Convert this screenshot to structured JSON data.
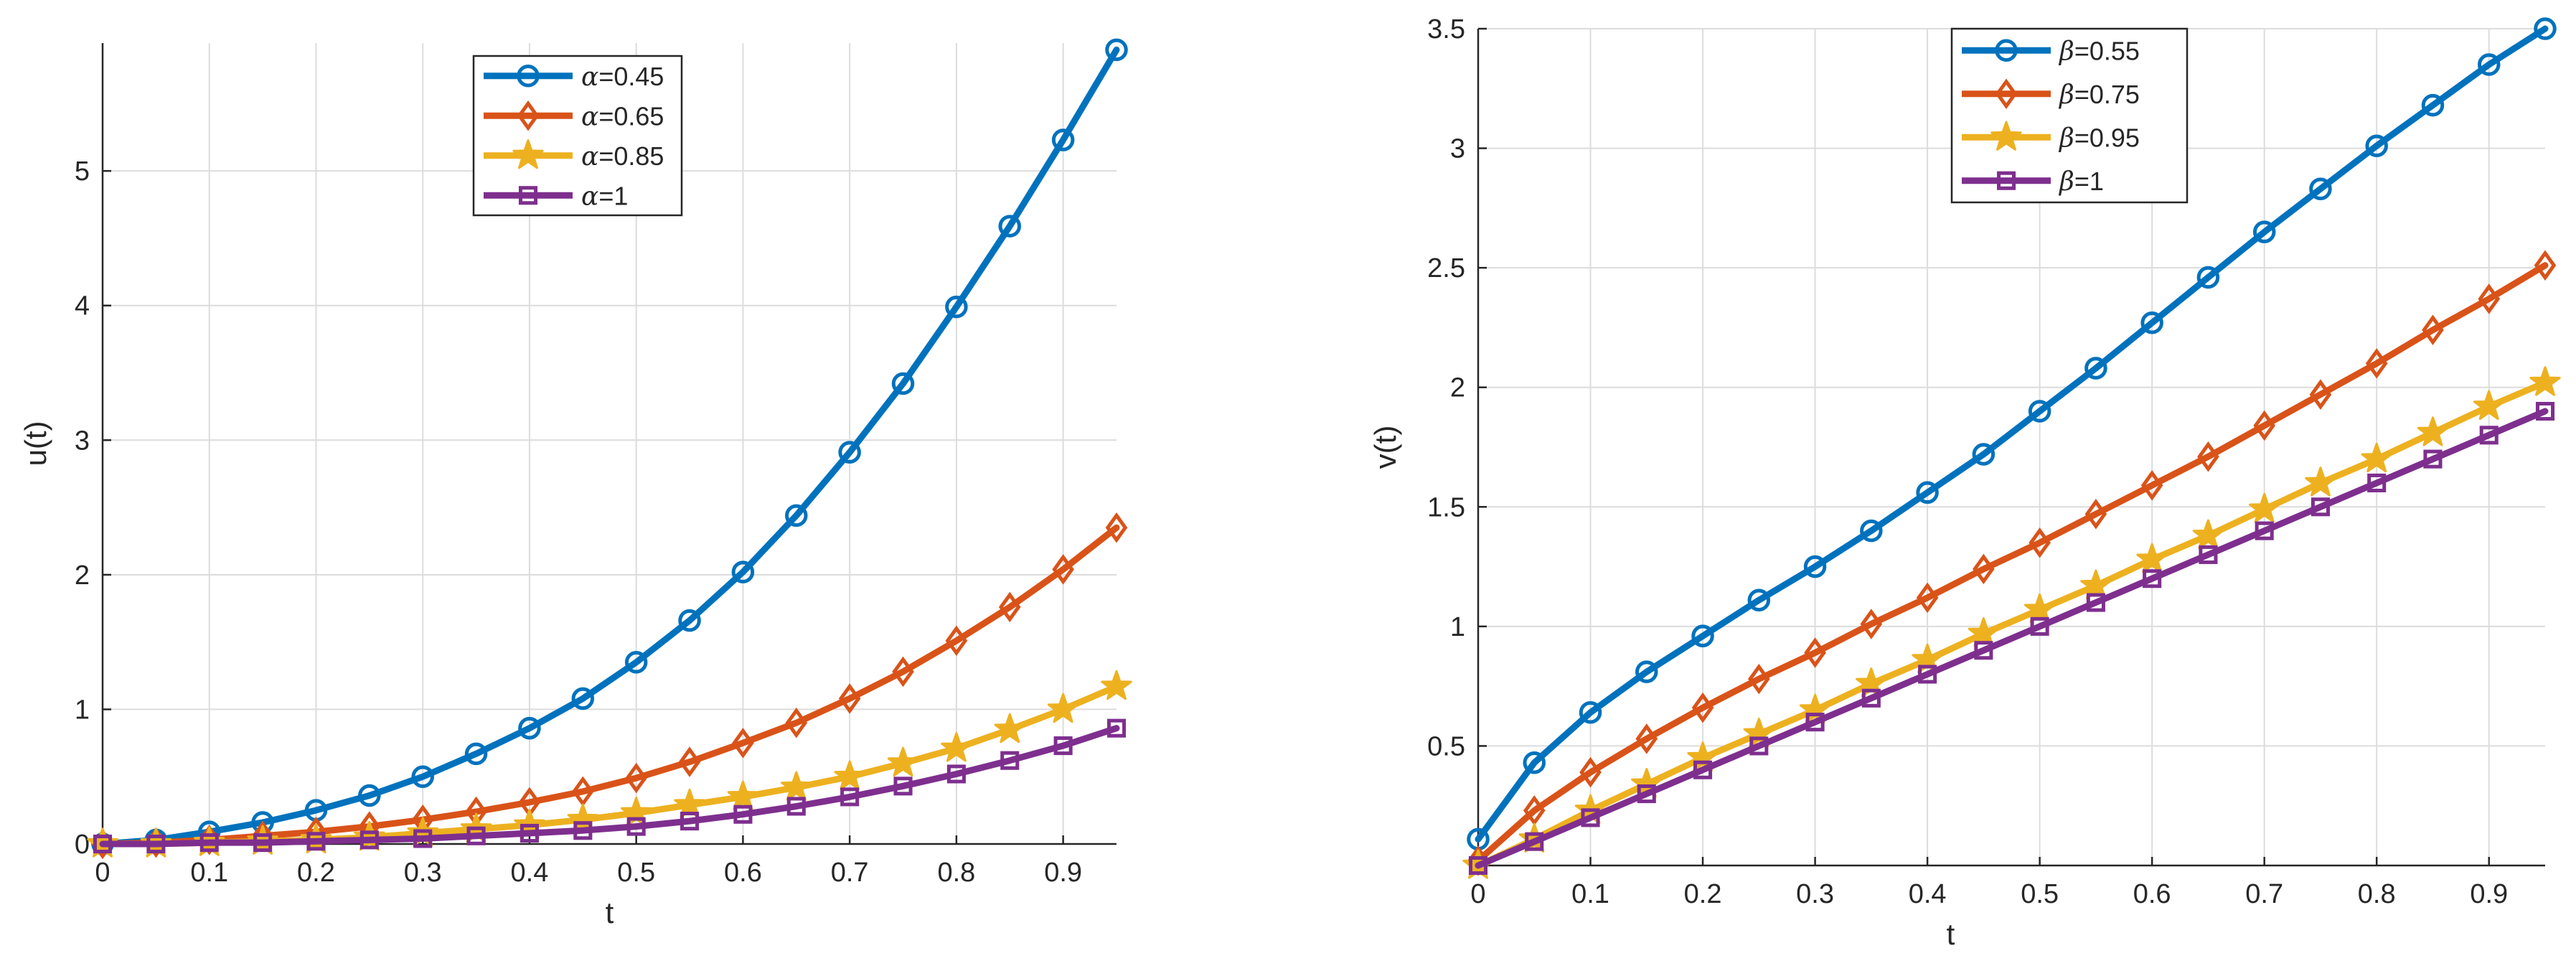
{
  "colors": {
    "blue": "#0072BD",
    "orange": "#D95319",
    "yellow": "#EDB120",
    "purple": "#7E2F8E",
    "grid": "#dcdcdc",
    "axis": "#262626"
  },
  "chart_data": [
    {
      "type": "line",
      "title": "",
      "xlabel": "t",
      "ylabel": "u(t)",
      "xlim": [
        0,
        0.95
      ],
      "ylim": [
        0,
        5.95
      ],
      "grid": true,
      "legend_position": "top-center",
      "xticks": [
        0,
        0.1,
        0.2,
        0.3,
        0.4,
        0.5,
        0.6,
        0.7,
        0.8,
        0.9
      ],
      "xtick_labels": [
        "0",
        "0.1",
        "0.2",
        "0.3",
        "0.4",
        "0.5",
        "0.6",
        "0.7",
        "0.8",
        "0.9"
      ],
      "yticks": [
        0,
        1,
        2,
        3,
        4,
        5
      ],
      "ytick_labels": [
        "0",
        "1",
        "2",
        "3",
        "4",
        "5"
      ],
      "x": [
        0,
        0.05,
        0.1,
        0.15,
        0.2,
        0.25,
        0.3,
        0.35,
        0.4,
        0.45,
        0.5,
        0.55,
        0.6,
        0.65,
        0.7,
        0.75,
        0.8,
        0.85,
        0.9,
        0.95
      ],
      "series": [
        {
          "name_symbol": "α",
          "name_value": "=0.45",
          "color": "#0072BD",
          "marker": "circle",
          "values": [
            0,
            0.03,
            0.09,
            0.16,
            0.25,
            0.36,
            0.5,
            0.67,
            0.86,
            1.08,
            1.35,
            1.66,
            2.02,
            2.44,
            2.91,
            3.42,
            3.99,
            4.59,
            5.23,
            5.9
          ]
        },
        {
          "name_symbol": "α",
          "name_value": "=0.65",
          "color": "#D95319",
          "marker": "diamond",
          "values": [
            0,
            0.01,
            0.03,
            0.06,
            0.09,
            0.13,
            0.18,
            0.24,
            0.31,
            0.39,
            0.49,
            0.61,
            0.75,
            0.9,
            1.08,
            1.28,
            1.51,
            1.76,
            2.04,
            2.35
          ]
        },
        {
          "name_symbol": "α",
          "name_value": "=0.85",
          "color": "#EDB120",
          "marker": "star",
          "values": [
            0,
            0,
            0.01,
            0.02,
            0.03,
            0.05,
            0.08,
            0.11,
            0.14,
            0.18,
            0.23,
            0.29,
            0.35,
            0.42,
            0.5,
            0.6,
            0.71,
            0.85,
            1.0,
            1.17
          ]
        },
        {
          "name_symbol": "α",
          "name_value": "=1",
          "color": "#7E2F8E",
          "marker": "square",
          "values": [
            0,
            0,
            0.01,
            0.01,
            0.02,
            0.03,
            0.04,
            0.06,
            0.08,
            0.1,
            0.13,
            0.17,
            0.22,
            0.28,
            0.35,
            0.43,
            0.52,
            0.62,
            0.73,
            0.86
          ]
        }
      ]
    },
    {
      "type": "line",
      "title": "",
      "xlabel": "t",
      "ylabel": "v(t)",
      "xlim": [
        0,
        0.95
      ],
      "ylim": [
        0,
        3.5
      ],
      "grid": true,
      "legend_position": "top-center",
      "xticks": [
        0,
        0.1,
        0.2,
        0.3,
        0.4,
        0.5,
        0.6,
        0.7,
        0.8,
        0.9
      ],
      "xtick_labels": [
        "0",
        "0.1",
        "0.2",
        "0.3",
        "0.4",
        "0.5",
        "0.6",
        "0.7",
        "0.8",
        "0.9"
      ],
      "yticks": [
        0.5,
        1,
        1.5,
        2,
        2.5,
        3,
        3.5
      ],
      "ytick_labels": [
        "0.5",
        "1",
        "1.5",
        "2",
        "2.5",
        "3",
        "3.5"
      ],
      "x": [
        0,
        0.05,
        0.1,
        0.15,
        0.2,
        0.25,
        0.3,
        0.35,
        0.4,
        0.45,
        0.5,
        0.55,
        0.6,
        0.65,
        0.7,
        0.75,
        0.8,
        0.85,
        0.9,
        0.95
      ],
      "series": [
        {
          "name_symbol": "β",
          "name_value": "=0.55",
          "color": "#0072BD",
          "marker": "circle",
          "values": [
            0.11,
            0.43,
            0.64,
            0.81,
            0.96,
            1.11,
            1.25,
            1.4,
            1.56,
            1.72,
            1.9,
            2.08,
            2.27,
            2.46,
            2.65,
            2.83,
            3.01,
            3.18,
            3.35,
            3.5
          ]
        },
        {
          "name_symbol": "β",
          "name_value": "=0.75",
          "color": "#D95319",
          "marker": "diamond",
          "values": [
            0.02,
            0.23,
            0.39,
            0.53,
            0.66,
            0.78,
            0.89,
            1.01,
            1.12,
            1.24,
            1.35,
            1.47,
            1.59,
            1.71,
            1.84,
            1.97,
            2.1,
            2.24,
            2.37,
            2.51
          ]
        },
        {
          "name_symbol": "β",
          "name_value": "=0.95",
          "color": "#EDB120",
          "marker": "star",
          "values": [
            0.0,
            0.11,
            0.23,
            0.34,
            0.45,
            0.55,
            0.65,
            0.76,
            0.86,
            0.97,
            1.07,
            1.17,
            1.28,
            1.38,
            1.49,
            1.6,
            1.7,
            1.81,
            1.92,
            2.02
          ]
        },
        {
          "name_symbol": "β",
          "name_value": "=1",
          "color": "#7E2F8E",
          "marker": "square",
          "values": [
            0,
            0.1,
            0.2,
            0.3,
            0.4,
            0.5,
            0.6,
            0.7,
            0.8,
            0.9,
            1.0,
            1.1,
            1.2,
            1.3,
            1.4,
            1.5,
            1.6,
            1.7,
            1.8,
            1.9
          ]
        }
      ]
    }
  ]
}
